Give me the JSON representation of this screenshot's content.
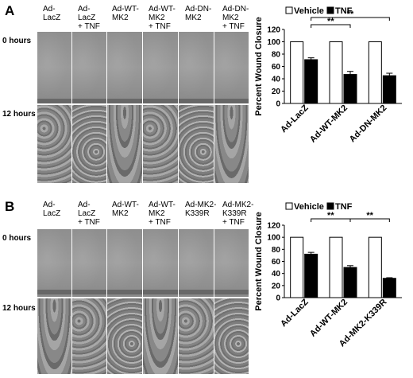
{
  "panels": [
    {
      "letter": "A",
      "columns": [
        "Ad-\nLacZ",
        "Ad-\nLacZ\n+ TNF",
        "Ad-WT-\nMK2",
        "Ad-WT-\nMK2\n+ TNF",
        "Ad-DN-\nMK2",
        "Ad-DN-\nMK2\n+ TNF"
      ],
      "rows": [
        "0 hours",
        "12 hours"
      ]
    },
    {
      "letter": "B",
      "columns": [
        "Ad-\nLacZ",
        "Ad-\nLacZ\n+ TNF",
        "Ad-WT-\nMK2",
        "Ad-WT-\nMK2\n+ TNF",
        "Ad-MK2-\nK339R",
        "Ad-MK2-\nK339R\n+ TNF"
      ],
      "rows": [
        "0 hours",
        "12 hours"
      ]
    }
  ],
  "chart_data": [
    {
      "type": "bar",
      "categories": [
        "Ad-LacZ",
        "Ad-WT-MK2",
        "Ad-DN-MK2"
      ],
      "series": [
        {
          "name": "Vehicle",
          "values": [
            100,
            100,
            100
          ],
          "errors": [
            0,
            0,
            0
          ],
          "color": "#ffffff"
        },
        {
          "name": "TNF",
          "values": [
            71,
            47,
            45
          ],
          "errors": [
            3,
            5,
            4
          ],
          "color": "#000000"
        }
      ],
      "ylabel": "Percent Wound Closure",
      "ylim": [
        0,
        120
      ],
      "yticks": [
        0,
        20,
        40,
        60,
        80,
        100,
        120
      ],
      "legend": "top",
      "significance": [
        {
          "from": 0,
          "to": 1,
          "label": "**"
        },
        {
          "from": 0,
          "to": 2,
          "label": "**"
        }
      ]
    },
    {
      "type": "bar",
      "categories": [
        "Ad-LacZ",
        "Ad-WT-MK2",
        "Ad-MK2-K339R"
      ],
      "series": [
        {
          "name": "Vehicle",
          "values": [
            100,
            100,
            100
          ],
          "errors": [
            0,
            0,
            0
          ],
          "color": "#ffffff"
        },
        {
          "name": "TNF",
          "values": [
            72,
            50,
            32
          ],
          "errors": [
            3,
            3,
            1
          ],
          "color": "#000000"
        }
      ],
      "ylabel": "Percent Wound Closure",
      "ylim": [
        0,
        120
      ],
      "yticks": [
        0,
        20,
        40,
        60,
        80,
        100,
        120
      ],
      "legend": "top",
      "significance": [
        {
          "from": 0,
          "to": 1,
          "label": "**"
        },
        {
          "from": 1,
          "to": 2,
          "label": "**"
        }
      ]
    }
  ]
}
